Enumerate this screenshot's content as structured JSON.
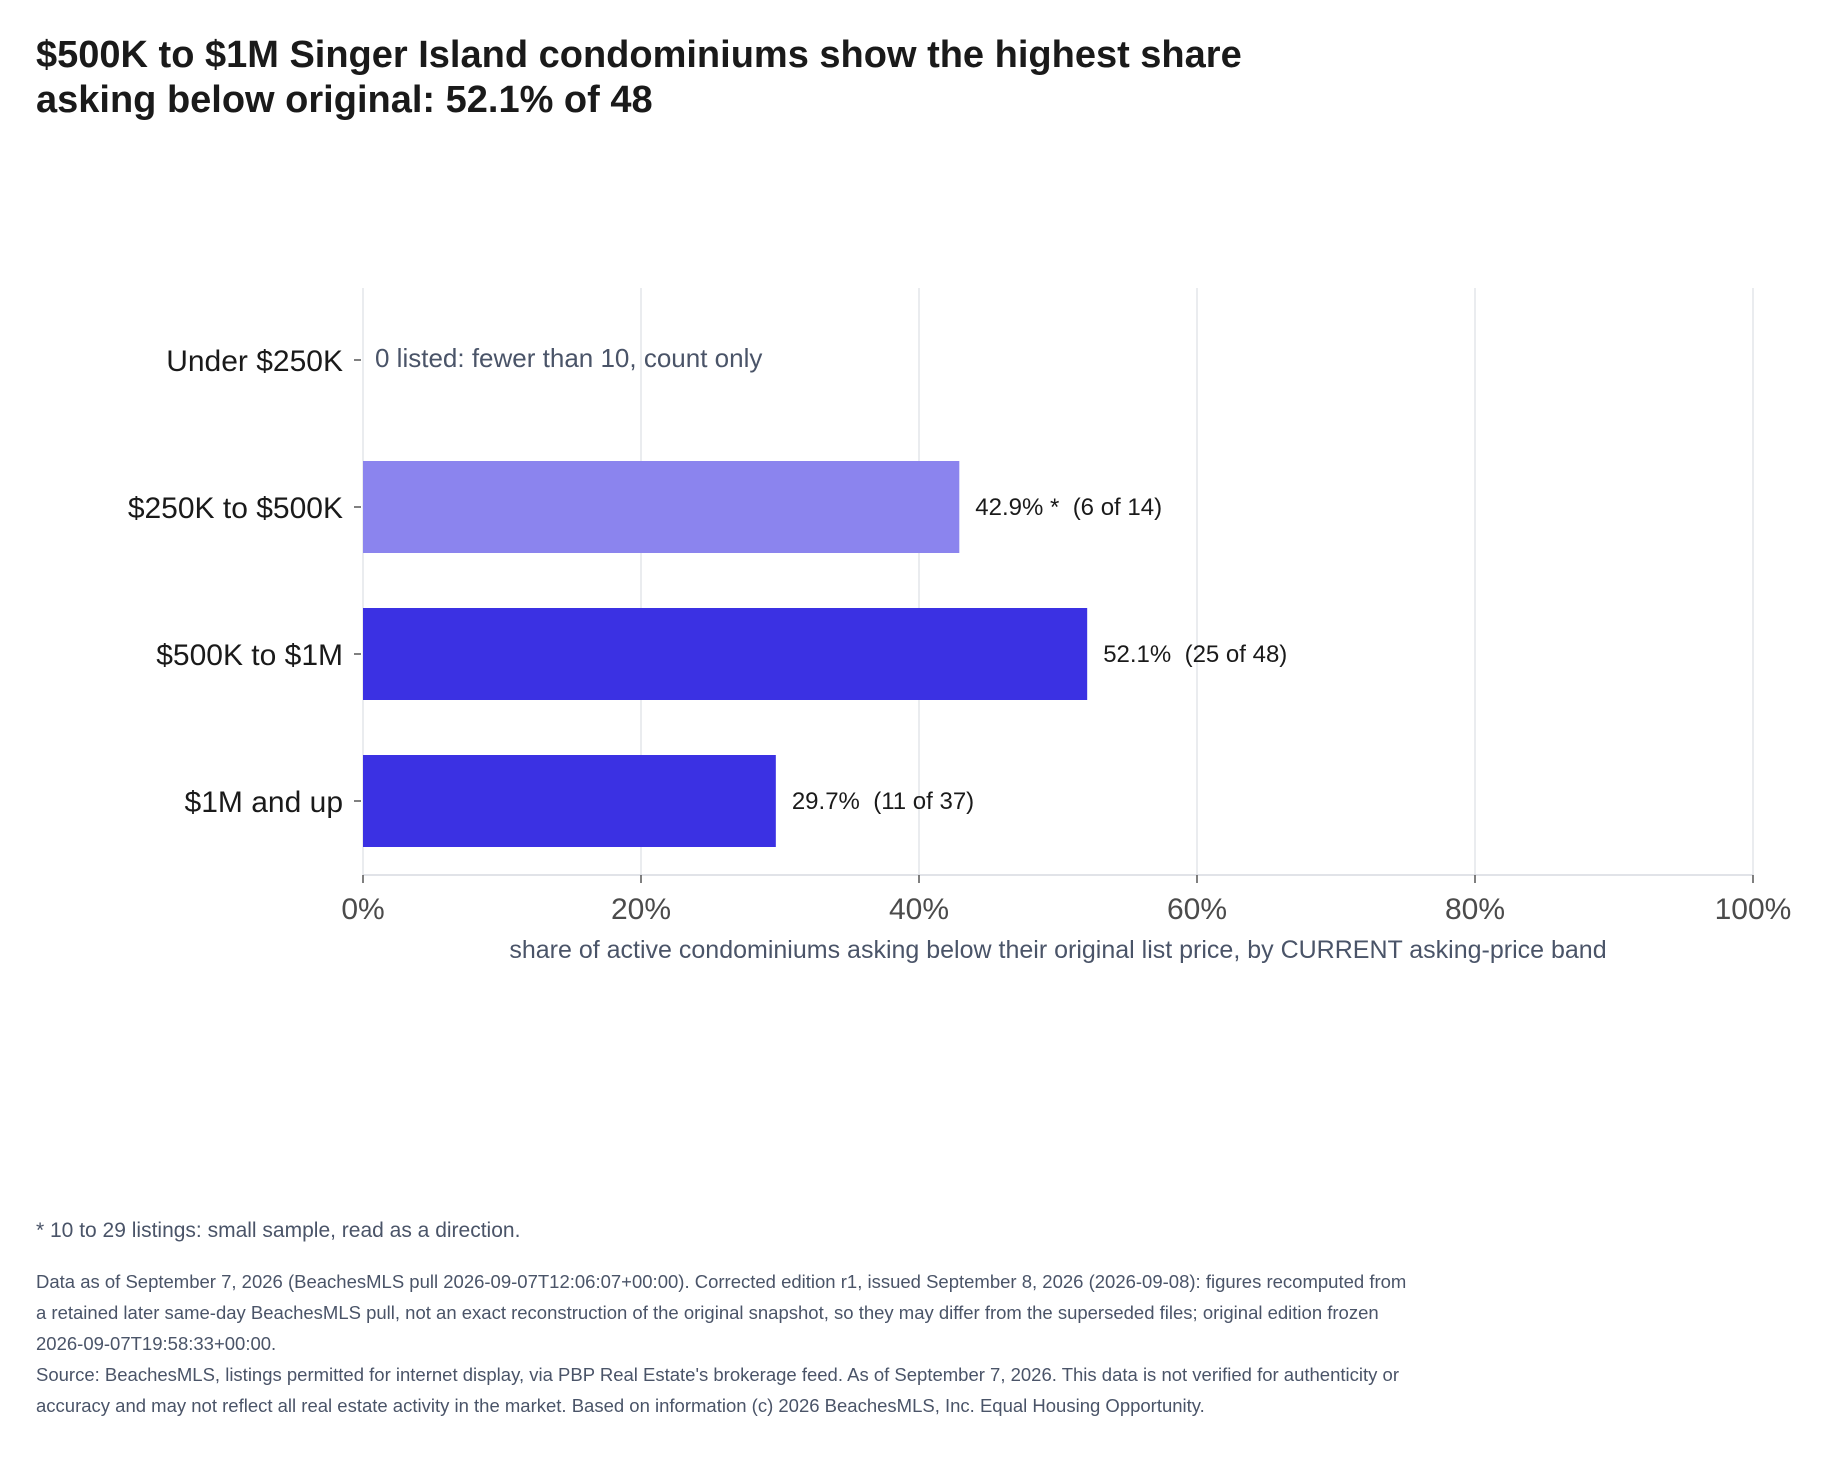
{
  "title": "$500K to $1M Singer Island condominiums show the highest share asking below original: 52.1% of 48",
  "chart_data": {
    "type": "bar",
    "orientation": "horizontal",
    "categories": [
      "Under $250K",
      "$250K to $500K",
      "$500K to $1M",
      "$1M and up"
    ],
    "values": [
      null,
      42.9,
      52.1,
      29.7
    ],
    "value_labels": [
      "0 listed: fewer than 10, count only",
      "42.9% *  (6 of 14)",
      "52.1%  (25 of 48)",
      "29.7%  (11 of 37)"
    ],
    "bar_colors": [
      null,
      "#8b84ee",
      "#3b31e3",
      "#3b31e3"
    ],
    "xlabel": "share of active condominiums asking below their original list price, by CURRENT asking-price band",
    "xlim": [
      0,
      100
    ],
    "xticks": [
      "0%",
      "20%",
      "40%",
      "60%",
      "80%",
      "100%"
    ],
    "grid": true
  },
  "footnote": "* 10 to 29 listings: small sample, read as a direction.",
  "notes": [
    "Data as of September 7, 2026 (BeachesMLS pull 2026-09-07T12:06:07+00:00). Corrected edition r1, issued September 8, 2026 (2026-09-08): figures recomputed from a retained later same-day BeachesMLS pull, not an exact reconstruction of the original snapshot, so they may differ from the superseded files; original edition frozen 2026-09-07T19:58:33+00:00.",
    "Source: BeachesMLS, listings permitted for internet display, via PBP Real Estate's brokerage feed. As of September 7, 2026. This data is not verified for authenticity or accuracy and may not reflect all real estate activity in the market. Based on information (c) 2026 BeachesMLS, Inc. Equal Housing Opportunity."
  ],
  "colors": {
    "bar_primary": "#3b31e3",
    "bar_small_sample": "#8b84ee",
    "grid": "#e3e5ea",
    "muted_text": "#4a5468"
  }
}
